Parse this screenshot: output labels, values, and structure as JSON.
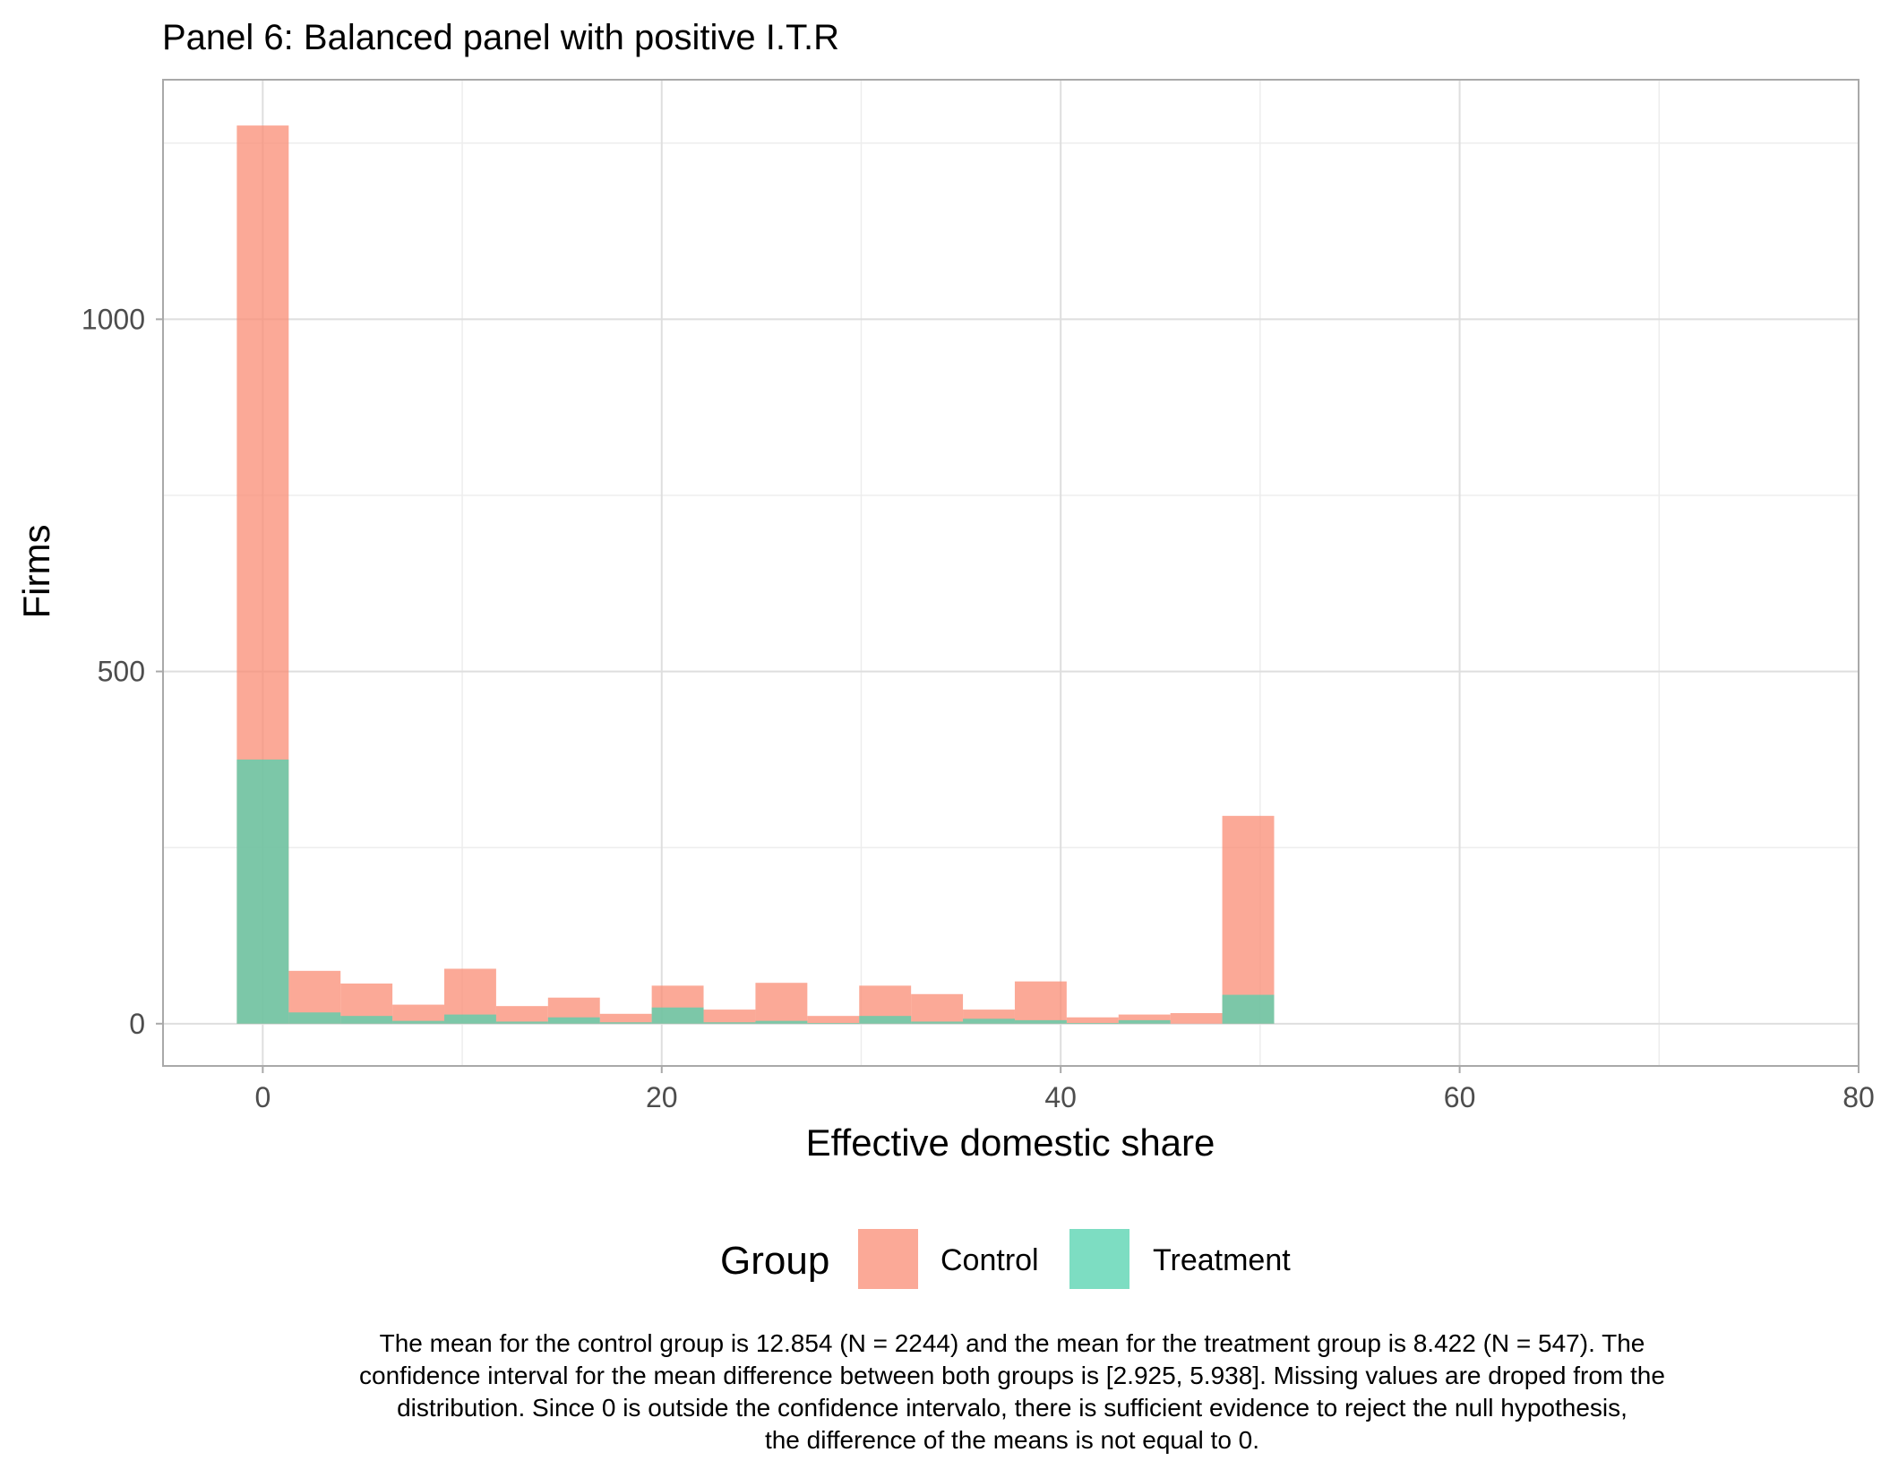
{
  "chart_data": {
    "type": "histogram",
    "title": "Panel 6: Balanced panel with positive I.T.R",
    "xlabel": "Effective domestic share",
    "ylabel": "Firms",
    "xlim": [
      -5,
      80
    ],
    "ylim": [
      -60,
      1340
    ],
    "x_ticks": [
      0,
      20,
      40,
      60,
      80
    ],
    "y_ticks": [
      0,
      500,
      1000
    ],
    "grid": true,
    "bin_width": 2.6,
    "bin_centers": [
      0.0,
      2.6,
      5.2,
      7.8,
      10.4,
      13.0,
      15.6,
      18.2,
      20.8,
      23.4,
      26.0,
      28.6,
      31.2,
      33.8,
      36.4,
      39.0,
      41.6,
      44.2,
      46.8,
      49.4
    ],
    "series": [
      {
        "name": "Control",
        "color": "#FA8C74",
        "opacity": 0.75,
        "values": [
          1275,
          75,
          57,
          27,
          78,
          25,
          37,
          14,
          54,
          20,
          58,
          11,
          54,
          42,
          20,
          60,
          9,
          13,
          15,
          295
        ]
      },
      {
        "name": "Treatment",
        "color": "#52D1AE",
        "opacity": 0.75,
        "values": [
          375,
          16,
          11,
          4,
          13,
          3,
          9,
          2,
          23,
          2,
          4,
          1,
          11,
          3,
          7,
          5,
          1,
          5,
          0,
          41
        ]
      }
    ],
    "legend": {
      "title": "Group",
      "position": "bottom",
      "entries": [
        "Control",
        "Treatment"
      ]
    }
  },
  "caption": {
    "lines": [
      "The mean for the control group is 12.854 (N = 2244) and the mean for the treatment group is 8.422 (N = 547). The",
      "confidence interval for the mean difference between both groups is [2.925, 5.938]. Missing values are droped from the",
      "distribution. Since 0 is outside the confidence intervalo, there is sufficient evidence to reject the null hypothesis,",
      "the difference of the means is not equal to 0."
    ]
  }
}
